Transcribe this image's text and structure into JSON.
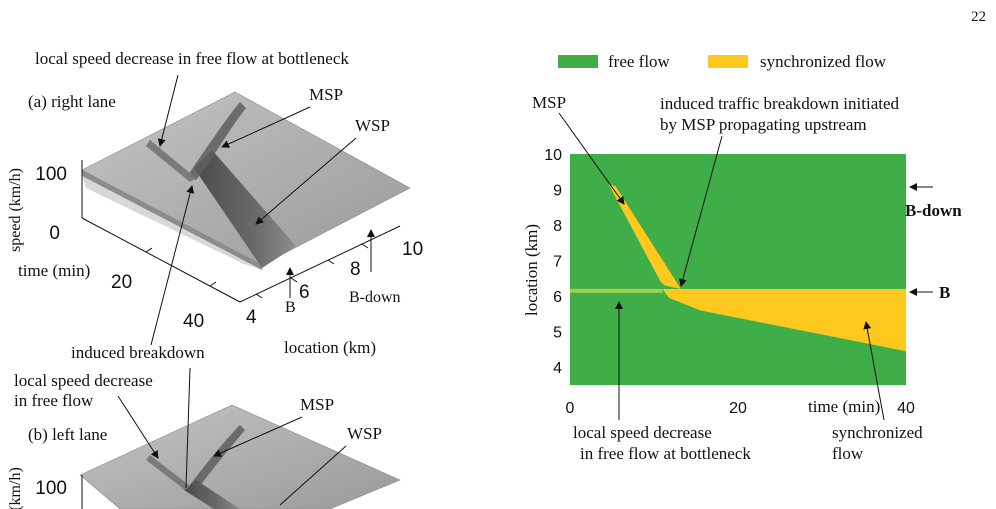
{
  "page_number": "22",
  "left_panel": {
    "top_note": "local speed decrease in free flow at bottleneck",
    "panel_a": {
      "label": "(a) right lane",
      "msp": "MSP",
      "wsp": "WSP",
      "ylabel": "speed (km/h)",
      "speed_ticks": [
        "100",
        "0"
      ],
      "time_label": "time (min)",
      "time_ticks": [
        "20",
        "40"
      ],
      "location_ticks": [
        "4",
        "6",
        "8",
        "10"
      ],
      "b_marker": "B",
      "b_down_marker": "B-down",
      "location_label": "location (km)",
      "induced": "induced breakdown"
    },
    "panel_b": {
      "note_line1": "local speed decrease",
      "note_line2": "in free flow",
      "label": "(b) left lane",
      "msp": "MSP",
      "wsp": "WSP",
      "ylabel_partial": "(km/h)",
      "speed_tick": "100"
    }
  },
  "right_panel": {
    "legend": [
      {
        "label": "free flow",
        "color": "#3fae49"
      },
      {
        "label": "synchronized flow",
        "color": "#ffc81e"
      }
    ],
    "msp_label": "MSP",
    "induced_line1": "induced traffic breakdown initiated",
    "induced_line2": "by MSP propagating upstream",
    "b_down": "B-down",
    "b": "B",
    "local_line1": "local speed decrease",
    "local_line2": "in free flow at bottleneck",
    "sync_line1": "synchronized",
    "sync_line2": "flow"
  },
  "chart_data": {
    "type": "heatmap",
    "xlabel": "time (min)",
    "ylabel": "location (km)",
    "xlim": [
      0,
      40
    ],
    "ylim": [
      3.5,
      10
    ],
    "x_ticks": [
      0,
      20,
      40
    ],
    "y_ticks": [
      4,
      5,
      6,
      7,
      8,
      9,
      10
    ],
    "background_state": "free flow",
    "regions": [
      {
        "state": "synchronized flow",
        "name": "MSP propagating upstream",
        "polygon": [
          [
            4.6,
            9.15
          ],
          [
            5.4,
            9.1
          ],
          [
            13.2,
            6.2
          ],
          [
            11.3,
            6.3
          ],
          [
            10.8,
            6.4
          ]
        ]
      },
      {
        "state": "synchronized flow",
        "name": "synchronized flow",
        "polygon": [
          [
            11.0,
            6.2
          ],
          [
            40,
            6.2
          ],
          [
            40,
            4.45
          ],
          [
            15.5,
            5.6
          ],
          [
            11.8,
            5.95
          ]
        ]
      }
    ],
    "bottleneck_line": {
      "location": 6.15,
      "x_start": 0,
      "x_end": 11
    }
  }
}
